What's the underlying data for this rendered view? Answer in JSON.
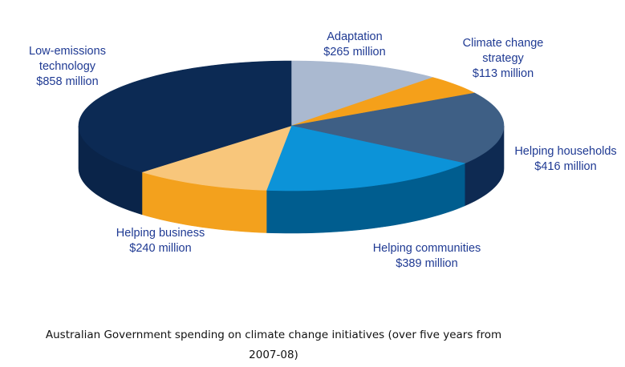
{
  "chart_data": {
    "type": "pie",
    "style": "3d",
    "title": "",
    "unit": "$ million",
    "slices": [
      {
        "id": "adaptation",
        "label_lines": [
          "Adaptation",
          "$265 million"
        ],
        "value": 265,
        "color": "#aab9d0",
        "side_color": "#7e8ea8"
      },
      {
        "id": "climate-change-strategy",
        "label_lines": [
          "Climate change",
          "strategy",
          "$113 million"
        ],
        "value": 113,
        "color": "#f5a01a",
        "side_color": "#d98a0c"
      },
      {
        "id": "helping-households",
        "label_lines": [
          "Helping households",
          "$416 million"
        ],
        "value": 416,
        "color": "#3e5f85",
        "side_color": "#0e2a52"
      },
      {
        "id": "helping-communities",
        "label_lines": [
          "Helping communities",
          "$389 million"
        ],
        "value": 389,
        "color": "#0c93d8",
        "side_color": "#005d8f"
      },
      {
        "id": "helping-business",
        "label_lines": [
          "Helping business",
          "$240 million"
        ],
        "value": 240,
        "color": "#f8c67b",
        "side_color": "#f3a11d"
      },
      {
        "id": "low-emissions-technology",
        "label_lines": [
          "Low-emissions",
          "technology",
          "$858 million"
        ],
        "value": 858,
        "color": "#0c2a54",
        "side_color": "#0a2449"
      }
    ]
  },
  "caption": {
    "line1": "Australian Government spending on climate change initiatives (over five years from",
    "line2": "2007-08)"
  }
}
